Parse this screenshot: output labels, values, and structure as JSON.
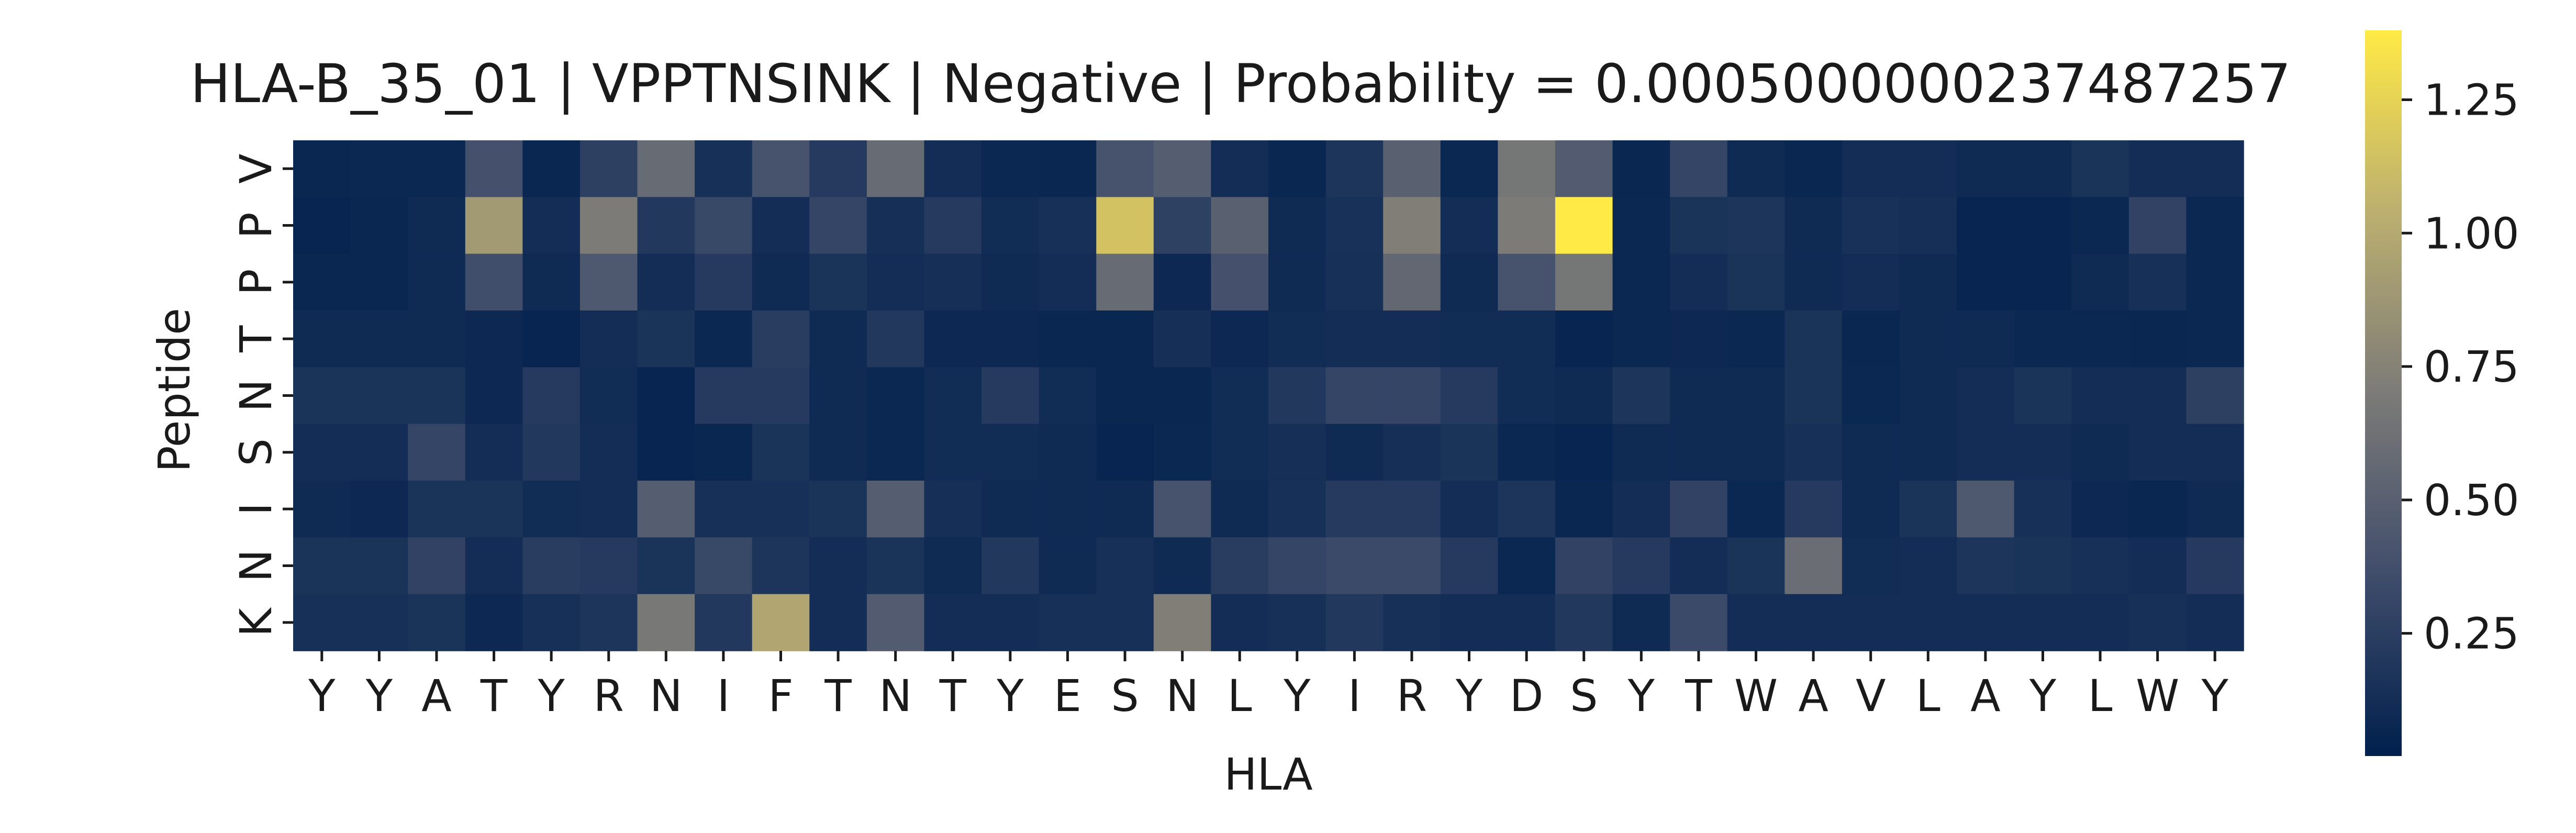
{
  "chart_data": {
    "type": "heatmap",
    "title": "HLA-B_35_01 | VPPTNSINK | Negative | Probability = 0.0005000000237487257",
    "xlabel": "HLA",
    "ylabel": "Peptide",
    "x_categories": [
      "Y",
      "Y",
      "A",
      "T",
      "Y",
      "R",
      "N",
      "I",
      "F",
      "T",
      "N",
      "T",
      "Y",
      "E",
      "S",
      "N",
      "L",
      "Y",
      "I",
      "R",
      "Y",
      "D",
      "S",
      "Y",
      "T",
      "W",
      "A",
      "V",
      "L",
      "A",
      "Y",
      "L",
      "W",
      "Y"
    ],
    "y_categories": [
      "V",
      "P",
      "P",
      "T",
      "N",
      "S",
      "I",
      "N",
      "K"
    ],
    "values": [
      [
        0.07,
        0.08,
        0.08,
        0.38,
        0.07,
        0.26,
        0.58,
        0.14,
        0.4,
        0.22,
        0.58,
        0.12,
        0.08,
        0.07,
        0.4,
        0.48,
        0.12,
        0.07,
        0.18,
        0.5,
        0.08,
        0.66,
        0.46,
        0.07,
        0.3,
        0.1,
        0.07,
        0.12,
        0.12,
        0.1,
        0.1,
        0.16,
        0.12,
        0.12
      ],
      [
        0.06,
        0.07,
        0.1,
        0.9,
        0.12,
        0.7,
        0.2,
        0.32,
        0.12,
        0.3,
        0.13,
        0.22,
        0.11,
        0.14,
        1.15,
        0.27,
        0.5,
        0.1,
        0.15,
        0.72,
        0.12,
        0.7,
        1.38,
        0.08,
        0.16,
        0.18,
        0.1,
        0.15,
        0.13,
        0.06,
        0.06,
        0.08,
        0.28,
        0.08
      ],
      [
        0.07,
        0.07,
        0.1,
        0.36,
        0.1,
        0.44,
        0.12,
        0.22,
        0.1,
        0.16,
        0.12,
        0.13,
        0.1,
        0.12,
        0.58,
        0.09,
        0.38,
        0.1,
        0.14,
        0.55,
        0.1,
        0.4,
        0.66,
        0.08,
        0.12,
        0.16,
        0.1,
        0.12,
        0.1,
        0.06,
        0.06,
        0.1,
        0.14,
        0.08
      ],
      [
        0.1,
        0.1,
        0.1,
        0.09,
        0.06,
        0.12,
        0.16,
        0.08,
        0.24,
        0.1,
        0.2,
        0.09,
        0.09,
        0.07,
        0.07,
        0.13,
        0.09,
        0.11,
        0.12,
        0.12,
        0.11,
        0.11,
        0.06,
        0.08,
        0.09,
        0.08,
        0.16,
        0.07,
        0.1,
        0.1,
        0.08,
        0.08,
        0.07,
        0.08
      ],
      [
        0.16,
        0.16,
        0.16,
        0.09,
        0.22,
        0.11,
        0.06,
        0.22,
        0.22,
        0.1,
        0.08,
        0.11,
        0.22,
        0.11,
        0.07,
        0.07,
        0.11,
        0.2,
        0.3,
        0.3,
        0.22,
        0.11,
        0.1,
        0.18,
        0.1,
        0.1,
        0.16,
        0.08,
        0.1,
        0.12,
        0.16,
        0.12,
        0.12,
        0.26
      ],
      [
        0.12,
        0.12,
        0.3,
        0.12,
        0.2,
        0.12,
        0.06,
        0.07,
        0.16,
        0.1,
        0.08,
        0.11,
        0.11,
        0.1,
        0.06,
        0.08,
        0.11,
        0.13,
        0.1,
        0.13,
        0.16,
        0.08,
        0.06,
        0.1,
        0.1,
        0.1,
        0.14,
        0.1,
        0.1,
        0.12,
        0.12,
        0.1,
        0.12,
        0.12
      ],
      [
        0.1,
        0.09,
        0.16,
        0.16,
        0.11,
        0.12,
        0.48,
        0.14,
        0.14,
        0.16,
        0.48,
        0.13,
        0.1,
        0.1,
        0.1,
        0.4,
        0.1,
        0.14,
        0.22,
        0.22,
        0.12,
        0.18,
        0.07,
        0.12,
        0.28,
        0.08,
        0.22,
        0.1,
        0.16,
        0.44,
        0.14,
        0.09,
        0.07,
        0.1
      ],
      [
        0.16,
        0.16,
        0.28,
        0.12,
        0.24,
        0.22,
        0.16,
        0.32,
        0.18,
        0.12,
        0.16,
        0.1,
        0.2,
        0.1,
        0.14,
        0.1,
        0.24,
        0.3,
        0.34,
        0.34,
        0.22,
        0.08,
        0.28,
        0.22,
        0.12,
        0.16,
        0.6,
        0.11,
        0.12,
        0.18,
        0.16,
        0.14,
        0.12,
        0.22
      ],
      [
        0.14,
        0.14,
        0.16,
        0.09,
        0.14,
        0.18,
        0.68,
        0.2,
        0.98,
        0.12,
        0.46,
        0.12,
        0.12,
        0.14,
        0.14,
        0.72,
        0.12,
        0.14,
        0.2,
        0.14,
        0.12,
        0.12,
        0.2,
        0.1,
        0.34,
        0.12,
        0.12,
        0.12,
        0.12,
        0.12,
        0.12,
        0.12,
        0.14,
        0.12
      ]
    ],
    "color_range": [
      0.02,
      1.38
    ],
    "colormap": "cividis",
    "colorbar_ticks": [
      "0.25",
      "0.50",
      "0.75",
      "1.00",
      "1.25"
    ],
    "colorbar_tick_values": [
      0.25,
      0.5,
      0.75,
      1.0,
      1.25
    ]
  }
}
